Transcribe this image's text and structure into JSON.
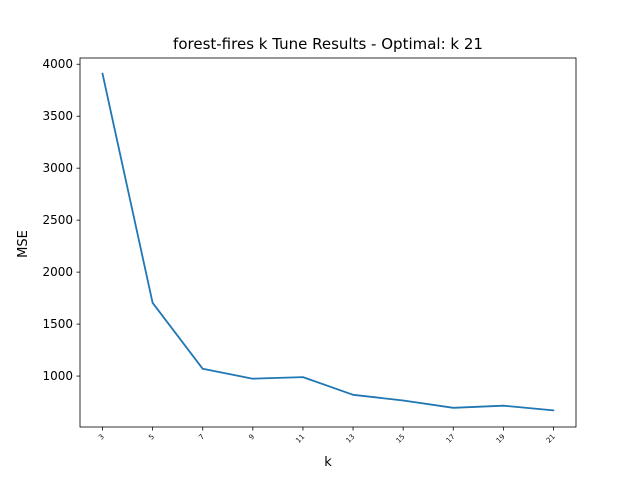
{
  "chart_data": {
    "type": "line",
    "title": "forest-fires k Tune Results - Optimal: k 21",
    "xlabel": "k",
    "ylabel": "MSE",
    "x": [
      3,
      5,
      7,
      9,
      11,
      13,
      15,
      17,
      19,
      21
    ],
    "x_tick_labels": [
      "3",
      "5",
      "7",
      "9",
      "11",
      "13",
      "15",
      "17",
      "19",
      "21"
    ],
    "y_ticks": [
      1000,
      1500,
      2000,
      2500,
      3000,
      3500,
      4000
    ],
    "y_tick_labels": [
      "1000",
      "1500",
      "2000",
      "2500",
      "3000",
      "3500",
      "4000"
    ],
    "xlim": [
      2.1,
      21.9
    ],
    "ylim": [
      510,
      4060
    ],
    "grid": false,
    "series": [
      {
        "values": [
          3910,
          1705,
          1070,
          975,
          990,
          820,
          765,
          695,
          715,
          670
        ],
        "color": "#1f77b4"
      }
    ]
  }
}
